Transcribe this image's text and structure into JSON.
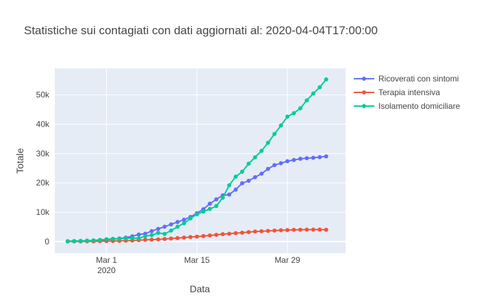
{
  "chart_data": {
    "type": "line",
    "title": "Statistiche sui contagiati con dati aggiornati al: 2020-04-04T17:00:00",
    "xlabel": "Data",
    "ylabel": "Totale",
    "x_start": "2020-02-24",
    "x_ticks": [
      {
        "date": "2020-03-01",
        "label": "Mar 1",
        "sub": "2020"
      },
      {
        "date": "2020-03-15",
        "label": "Mar 15",
        "sub": ""
      },
      {
        "date": "2020-03-29",
        "label": "Mar 29",
        "sub": ""
      }
    ],
    "y_ticks": [
      {
        "value": 0,
        "label": "0"
      },
      {
        "value": 10000,
        "label": "10k"
      },
      {
        "value": 20000,
        "label": "20k"
      },
      {
        "value": 30000,
        "label": "30k"
      },
      {
        "value": 40000,
        "label": "40k"
      },
      {
        "value": 50000,
        "label": "50k"
      }
    ],
    "ylim": [
      -4000,
      59000
    ],
    "xlim": [
      "2020-02-22",
      "2020-04-07"
    ],
    "grid": true,
    "legend_position": "top-right",
    "plot_bg": "#e5ecf6",
    "series": [
      {
        "name": "Ricoverati con sintomi",
        "color": "#636efa",
        "values": [
          101,
          114,
          128,
          248,
          345,
          401,
          639,
          742,
          1034,
          1346,
          1790,
          2394,
          2651,
          3557,
          4316,
          5038,
          5838,
          6650,
          7426,
          8372,
          9663,
          11025,
          12894,
          14363,
          15757,
          16020,
          17708,
          19846,
          20692,
          21937,
          23112,
          24753,
          26029,
          26676,
          27386,
          27795,
          28192,
          28403,
          28540,
          28741,
          29010
        ]
      },
      {
        "name": "Terapia intensiva",
        "color": "#ef553b",
        "values": [
          26,
          35,
          36,
          56,
          64,
          105,
          140,
          166,
          229,
          295,
          351,
          462,
          567,
          650,
          733,
          877,
          1028,
          1153,
          1328,
          1518,
          1672,
          1851,
          2060,
          2257,
          2498,
          2655,
          2857,
          3009,
          3204,
          3396,
          3489,
          3612,
          3732,
          3856,
          3906,
          3981,
          4023,
          4035,
          4053,
          4068,
          3994
        ]
      },
      {
        "name": "Isolamento domiciliare",
        "color": "#00cc96",
        "values": [
          94,
          162,
          221,
          284,
          412,
          543,
          798,
          927,
          1000,
          1065,
          1155,
          1060,
          1843,
          2180,
          2936,
          2599,
          3724,
          5036,
          6201,
          7860,
          9268,
          10197,
          11108,
          12090,
          14935,
          19185,
          22116,
          23783,
          26522,
          28697,
          30920,
          33648,
          36653,
          39533,
          42588,
          43752,
          45420,
          48134,
          50456,
          52579,
          55270
        ]
      }
    ]
  }
}
